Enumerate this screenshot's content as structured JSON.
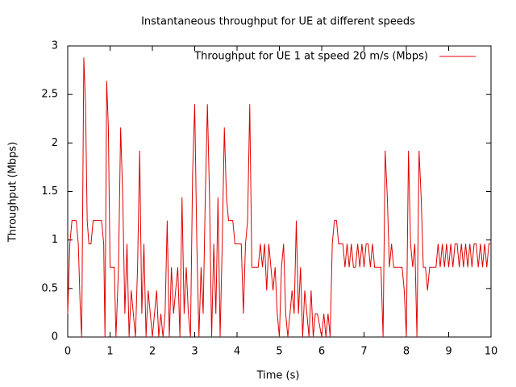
{
  "chart_data": {
    "type": "line",
    "title": "Instantaneous throughput for UE at different speeds",
    "xlabel": "Time (s)",
    "ylabel": "Throughput (Mbps)",
    "xlim": [
      0,
      10
    ],
    "xticks": [
      0,
      1,
      2,
      3,
      4,
      5,
      6,
      7,
      8,
      9,
      10
    ],
    "ylim": [
      0,
      3
    ],
    "yticks": [
      0,
      0.5,
      1,
      1.5,
      2,
      2.5,
      3
    ],
    "grid": false,
    "legend": "top-right",
    "x": [
      0,
      0.05,
      0.1,
      0.2,
      0.25,
      0.3,
      0.33,
      0.38,
      0.42,
      0.46,
      0.5,
      0.55,
      0.6,
      0.8,
      0.85,
      0.88,
      0.92,
      0.96,
      1.0,
      1.1,
      1.14,
      1.2,
      1.25,
      1.3,
      1.35,
      1.4,
      1.45,
      1.5,
      1.55,
      1.6,
      1.65,
      1.7,
      1.75,
      1.8,
      1.85,
      1.9,
      1.95,
      2.0,
      2.05,
      2.1,
      2.15,
      2.2,
      2.25,
      2.3,
      2.35,
      2.4,
      2.45,
      2.5,
      2.55,
      2.6,
      2.65,
      2.7,
      2.75,
      2.8,
      2.85,
      2.9,
      2.95,
      3.0,
      3.05,
      3.1,
      3.15,
      3.2,
      3.25,
      3.3,
      3.35,
      3.4,
      3.45,
      3.5,
      3.55,
      3.6,
      3.65,
      3.7,
      3.75,
      3.8,
      3.85,
      3.9,
      3.95,
      4.1,
      4.15,
      4.2,
      4.25,
      4.3,
      4.35,
      4.5,
      4.55,
      4.6,
      4.65,
      4.7,
      4.75,
      4.8,
      4.85,
      4.9,
      4.95,
      5.0,
      5.05,
      5.1,
      5.15,
      5.2,
      5.25,
      5.3,
      5.35,
      5.4,
      5.45,
      5.5,
      5.55,
      5.6,
      5.65,
      5.7,
      5.75,
      5.8,
      5.85,
      5.9,
      6.0,
      6.05,
      6.1,
      6.15,
      6.2,
      6.25,
      6.3,
      6.35,
      6.4,
      6.5,
      6.55,
      6.6,
      6.65,
      6.7,
      6.75,
      6.8,
      6.85,
      6.9,
      6.95,
      7.0,
      7.05,
      7.1,
      7.15,
      7.2,
      7.25,
      7.3,
      7.4,
      7.45,
      7.5,
      7.55,
      7.6,
      7.65,
      7.7,
      7.8,
      7.9,
      7.95,
      8.0,
      8.05,
      8.1,
      8.15,
      8.2,
      8.25,
      8.3,
      8.35,
      8.4,
      8.45,
      8.5,
      8.55,
      8.6,
      8.7,
      8.75,
      8.8,
      8.85,
      8.9,
      8.95,
      9.0,
      9.05,
      9.1,
      9.15,
      9.2,
      9.25,
      9.3,
      9.35,
      9.4,
      9.45,
      9.5,
      9.55,
      9.6,
      9.65,
      9.7,
      9.75,
      9.8,
      9.85,
      9.9,
      9.95,
      10
    ],
    "series": [
      {
        "name": "Throughput for UE 1 at speed 20 m/s (Mbps)",
        "color": "#e00000",
        "values": [
          0.24,
          0.96,
          1.2,
          1.2,
          0.96,
          0.24,
          0,
          2.88,
          2.4,
          1.2,
          0.96,
          0.96,
          1.2,
          1.2,
          0.96,
          0,
          2.64,
          2.16,
          0.72,
          0.72,
          0,
          0.72,
          2.16,
          1.44,
          0.24,
          0.96,
          0,
          0.48,
          0.24,
          0,
          0.72,
          1.92,
          0.24,
          0.96,
          0,
          0.48,
          0.24,
          0,
          0.24,
          0.48,
          0,
          0.24,
          0,
          0.24,
          1.2,
          0,
          0.72,
          0.24,
          0.48,
          0.72,
          0,
          1.44,
          0.24,
          0.72,
          0.24,
          0,
          1.68,
          2.4,
          0.96,
          0,
          0.72,
          0.24,
          1.44,
          2.4,
          1.44,
          0,
          0.96,
          0.24,
          1.44,
          0,
          0.96,
          2.16,
          1.44,
          1.2,
          1.2,
          1.2,
          0.96,
          0.96,
          0.24,
          0.96,
          1.2,
          2.4,
          0.72,
          0.72,
          0.96,
          0.72,
          0.96,
          0.48,
          0.96,
          0.72,
          0.48,
          0.72,
          0.24,
          0,
          0.72,
          0.96,
          0.24,
          0,
          0.24,
          0.48,
          0.24,
          1.2,
          0.24,
          0.72,
          0,
          0.48,
          0.24,
          0,
          0.48,
          0,
          0.24,
          0.24,
          0,
          0.24,
          0,
          0.24,
          0,
          0.96,
          1.2,
          1.2,
          0.96,
          0.96,
          0.72,
          0.96,
          0.72,
          0.96,
          0.72,
          0.72,
          0.96,
          0.72,
          0.96,
          0.72,
          0.96,
          0.96,
          0.72,
          0.96,
          0.72,
          0.72,
          0.72,
          0,
          1.92,
          1.44,
          0.72,
          0.96,
          0.72,
          0.72,
          0.72,
          0.48,
          0,
          1.92,
          0.96,
          0.72,
          0.96,
          0,
          1.92,
          1.44,
          0.72,
          0.72,
          0.48,
          0.72,
          0.72,
          0.72,
          0.96,
          0.72,
          0.96,
          0.72,
          0.96,
          0.72,
          0.96,
          0.72,
          0.96,
          0.96,
          0.72,
          0.96,
          0.72,
          0.96,
          0.72,
          0.96,
          0.72,
          0.96,
          0.96,
          0.72,
          0.96,
          0.72,
          0.96,
          0.72,
          0.96,
          0.96
        ]
      }
    ]
  }
}
